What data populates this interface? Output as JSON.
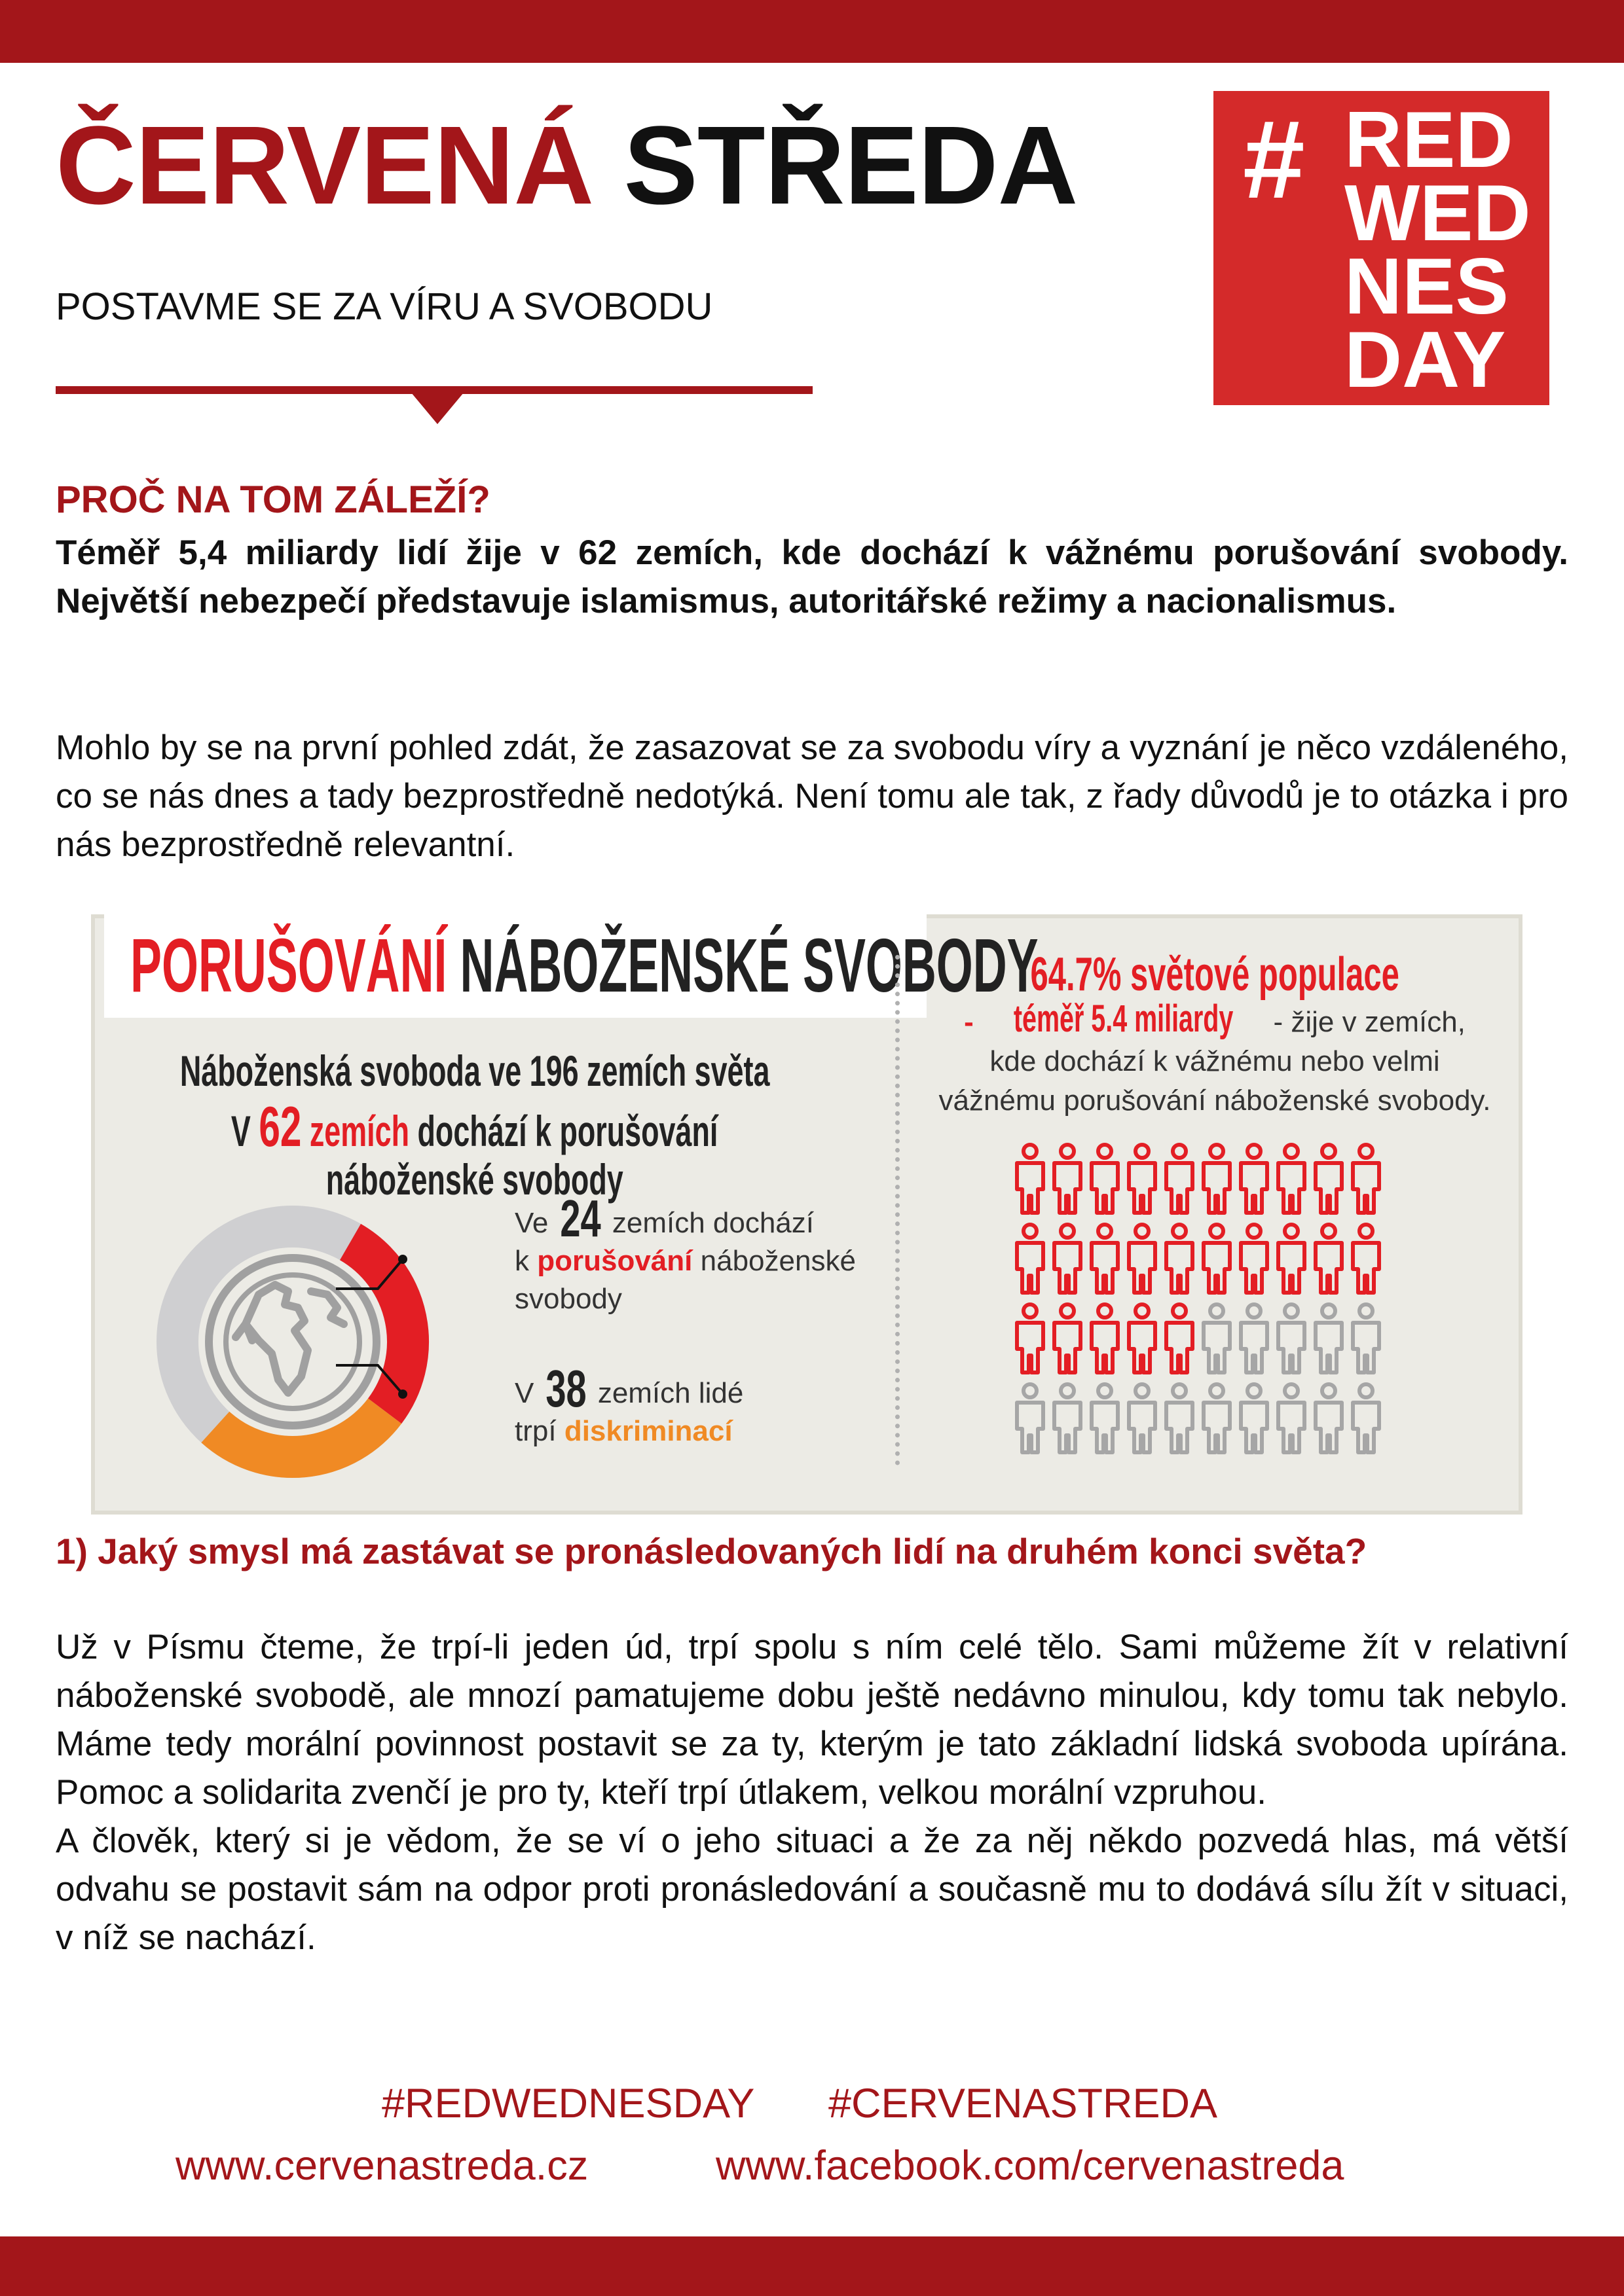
{
  "colors": {
    "brand_red": "#a3161a",
    "logo_red": "#d42a2a",
    "infographic_red": "#e31e24",
    "infographic_orange": "#f08a24",
    "infographic_gray": "#a6a6a6"
  },
  "header": {
    "title_red": "ČERVENÁ",
    "title_black": "STŘEDA",
    "subtitle": "POSTAVME SE ZA VÍRU A SVOBODU",
    "logo": {
      "hash": "#",
      "lines": [
        "RED",
        "WED",
        "NES",
        "DAY"
      ]
    }
  },
  "section1": {
    "heading": "PROČ NA TOM ZÁLEŽÍ?",
    "lead": "Téměř 5,4 miliardy lidí žije v 62 zemích, kde dochází k vážnému porušování svobody. Největší nebezpečí představuje islamismus, autoritářské režimy a nacionalismus.",
    "body": "Mohlo by se na první pohled zdát, že zasazovat se za svobodu víry a vyznání je něco vzdáleného, co se nás dnes a tady bezprostředně nedotýká. Není tomu ale tak, z řady důvodů je to otázka i pro nás bezprostředně relevantní."
  },
  "infographic": {
    "title_red": "PORUŠOVÁNÍ",
    "title_black": "NÁBOŽENSKÉ SVOBODY",
    "line1": "Náboženská svoboda ve 196 zemích světa",
    "line2_pre": "V",
    "line2_num": "62",
    "line2_red": "zemích",
    "line2_post": "dochází k porušování",
    "line3": "náboženské svobody",
    "callout1": {
      "pre": "Ve",
      "num": "24",
      "mid": "zemích dochází",
      "k": "k",
      "highlight": "porušování",
      "post": "náboženské",
      "last": "svobody"
    },
    "callout2": {
      "pre": "V",
      "num": "38",
      "mid": "zemích lidé",
      "trpi": "trpí",
      "highlight": "diskriminací"
    },
    "donut": {
      "total_countries": 196,
      "violation_countries": 24,
      "discrimination_countries": 38
    },
    "right_heading": "64.7% světové populace",
    "right_dash1": "-",
    "right_red": "téměř 5.4 miliardy",
    "right_dash2": "- žije v zemích,",
    "right_line2": "kde dochází k vážnému nebo velmi",
    "right_line3": "vážnému porušování náboženské svobody.",
    "people": {
      "total": 40,
      "highlighted": 25,
      "columns": 10
    }
  },
  "section2": {
    "heading": "1) Jaký smysl má zastávat se pronásledovaných lidí na druhém konci světa?",
    "paragraphs": [
      "Už v Písmu čteme, že trpí-li jeden úd, trpí spolu s ním celé tělo. Sami můžeme žít v relativní náboženské svobodě, ale mnozí pamatujeme dobu ještě nedávno minulou, kdy tomu tak nebylo. Máme tedy morální povinnost postavit se za ty, kterým je tato základní lidská svoboda upírána. Pomoc a solidarita zvenčí je pro ty, kteří trpí útlakem, velkou morální vzpruhou.",
      "A člověk, který si je vědom, že se ví o jeho situaci a že za něj někdo pozvedá hlas, má větší odvahu se postavit sám na odpor proti pronásledování a současně mu to dodává sílu žít v situaci, v níž se nachází."
    ]
  },
  "footer": {
    "hashtag1": "#REDWEDNESDAY",
    "hashtag2": "#CERVENASTREDA",
    "link1": "www.cervenastreda.cz",
    "link2": "www.facebook.com/cervenastreda"
  }
}
